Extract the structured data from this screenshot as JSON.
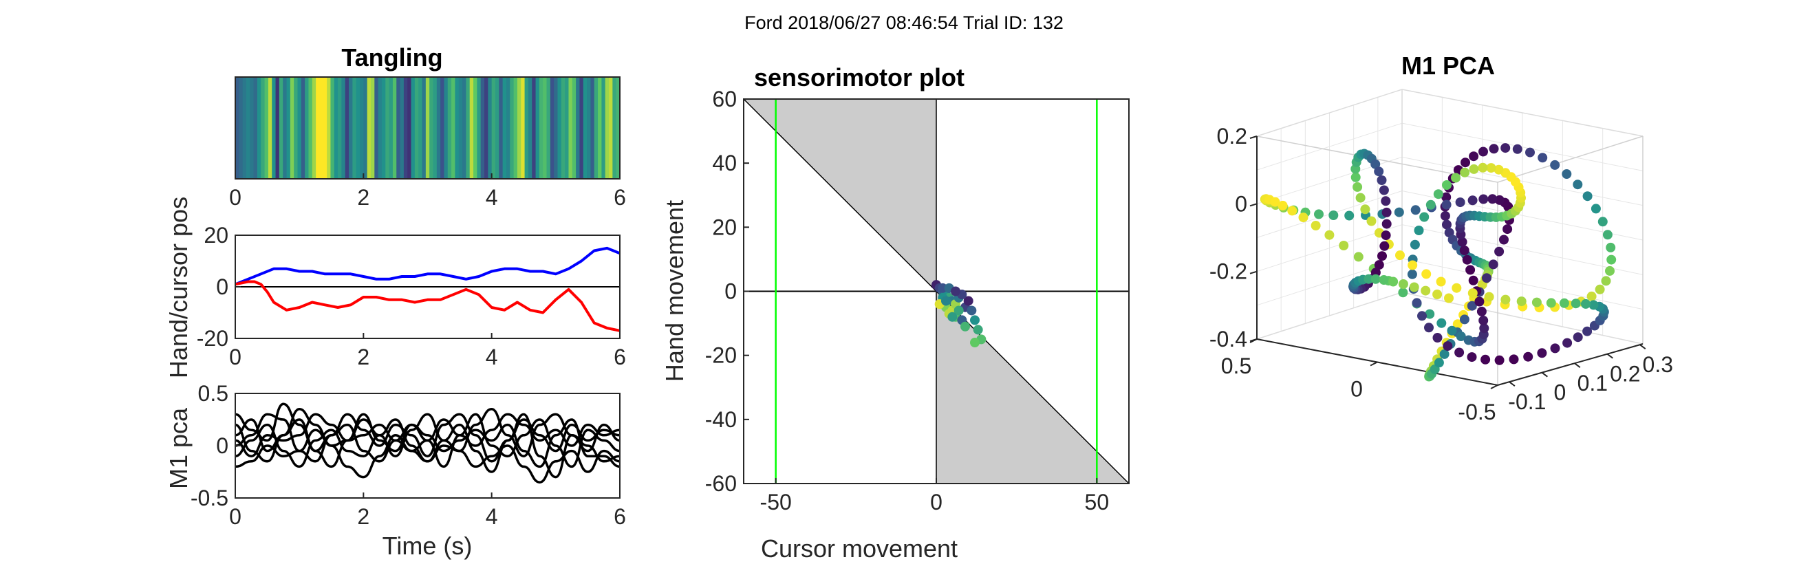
{
  "figure": {
    "suptitle": "Ford 2018/06/27 08:46:54 Trial ID: 132"
  },
  "colors": {
    "hand": "#0000ff",
    "cursor": "#ff0000",
    "pca": "#000000",
    "bound": "#00ff00",
    "shade": "#cccccc",
    "viridis": [
      "#440154",
      "#3b528b",
      "#21918c",
      "#5ec962",
      "#fde725"
    ]
  },
  "chart_data": [
    {
      "type": "heatmap",
      "title": "Tangling",
      "x_ticks": [
        "0",
        "2",
        "4",
        "6"
      ],
      "xlim": [
        0,
        6
      ],
      "values": [
        0.3,
        0.35,
        0.4,
        0.45,
        0.4,
        0.35,
        0.5,
        0.6,
        0.7,
        0.9,
        0.5,
        0.15,
        0.6,
        0.4,
        0.5,
        0.8,
        0.6,
        0.5,
        0.3,
        0.55,
        0.7,
        0.85,
        1,
        1,
        1,
        0.9,
        0.65,
        0.5,
        0.55,
        0.45,
        0.2,
        0.4,
        0.55,
        0.5,
        0.45,
        0.4,
        0.9,
        0.85,
        0.3,
        0.45,
        0.5,
        0.6,
        0.55,
        0.7,
        0.3,
        0.4,
        0.2,
        0.15,
        0.5,
        0.6,
        0.55,
        0.4,
        0.85,
        0.6,
        0.55,
        0.4,
        0.25,
        0.45,
        0.6,
        0.7,
        0.5,
        0.45,
        0.4,
        0.6,
        0.9,
        0.75,
        0.55,
        0.3,
        0.2,
        0.45,
        0.6,
        0.55,
        0.3,
        0.5,
        0.45,
        0.6,
        0.7,
        0.85,
        0.95,
        0.55,
        0.45,
        0.2,
        0.5,
        0.65,
        0.7,
        0.6,
        0.25,
        0.35,
        0.5,
        0.6,
        0.55,
        0.8,
        0.7,
        0.4,
        0.2,
        0.5,
        0.45,
        0.3,
        0.6,
        0.75,
        0.55,
        0.85,
        0.9,
        0.6,
        0.65
      ]
    },
    {
      "type": "line",
      "ylabel": "Hand/cursor pos",
      "x_ticks": [
        "0",
        "2",
        "4",
        "6"
      ],
      "y_ticks": [
        "20",
        "0",
        "-20"
      ],
      "xlim": [
        0,
        6
      ],
      "ylim": [
        -20,
        20
      ],
      "series": [
        {
          "color": "hand",
          "x": [
            0,
            0.2,
            0.4,
            0.6,
            0.8,
            1.0,
            1.2,
            1.4,
            1.6,
            1.8,
            2.0,
            2.2,
            2.4,
            2.6,
            2.8,
            3.0,
            3.2,
            3.4,
            3.6,
            3.8,
            4.0,
            4.2,
            4.4,
            4.6,
            4.8,
            5.0,
            5.2,
            5.4,
            5.6,
            5.8,
            6.0
          ],
          "y": [
            1,
            3,
            5,
            7,
            7,
            6,
            6,
            5,
            5,
            5,
            4,
            3,
            3,
            4,
            4,
            5,
            5,
            4,
            3,
            4,
            6,
            7,
            7,
            6,
            6,
            5,
            7,
            10,
            14,
            15,
            13
          ]
        },
        {
          "color": "cursor",
          "x": [
            0,
            0.2,
            0.3,
            0.4,
            0.5,
            0.6,
            0.8,
            1.0,
            1.2,
            1.4,
            1.6,
            1.8,
            2.0,
            2.2,
            2.4,
            2.6,
            2.8,
            3.0,
            3.2,
            3.4,
            3.6,
            3.8,
            4.0,
            4.2,
            4.4,
            4.6,
            4.8,
            5.0,
            5.2,
            5.4,
            5.6,
            5.8,
            6.0
          ],
          "y": [
            1,
            2,
            2,
            1,
            -2,
            -6,
            -9,
            -8,
            -6,
            -7,
            -8,
            -7,
            -4,
            -4,
            -5,
            -5,
            -6,
            -5,
            -5,
            -3,
            -1,
            -3,
            -8,
            -9,
            -6,
            -9,
            -10,
            -5,
            -1,
            -6,
            -14,
            -16,
            -17
          ]
        }
      ],
      "hline": 0
    },
    {
      "type": "line",
      "ylabel": "M1 pca",
      "xlabel": "Time (s)",
      "x_ticks": [
        "0",
        "2",
        "4",
        "6"
      ],
      "y_ticks": [
        "0.5",
        "0",
        "-0.5"
      ],
      "xlim": [
        0,
        6
      ],
      "ylim": [
        -0.5,
        0.5
      ],
      "x": [
        0,
        0.25,
        0.5,
        0.75,
        1.0,
        1.25,
        1.5,
        1.75,
        2.0,
        2.25,
        2.5,
        2.75,
        3.0,
        3.25,
        3.5,
        3.75,
        4.0,
        4.25,
        4.5,
        4.75,
        5.0,
        5.25,
        5.5,
        5.75,
        6.0
      ],
      "series": [
        {
          "values": [
            0.3,
            0.15,
            0.05,
            0.4,
            0.2,
            -0.05,
            0.1,
            0.3,
            0.15,
            0,
            0.2,
            0.1,
            -0.1,
            0.2,
            0.3,
            0.1,
            -0.15,
            0.05,
            0.25,
            0.1,
            -0.05,
            0.2,
            0.05,
            0.15,
            0.1
          ]
        },
        {
          "values": [
            0.1,
            0.25,
            -0.05,
            0.1,
            0.35,
            0.2,
            0,
            0.05,
            0.25,
            0.1,
            -0.1,
            0.15,
            0.3,
            0.05,
            -0.05,
            0.2,
            0.35,
            0.1,
            -0.1,
            0.2,
            0.3,
            0.1,
            -0.05,
            0.2,
            0.05
          ]
        },
        {
          "values": [
            -0.1,
            0.05,
            0.2,
            -0.05,
            -0.2,
            0.05,
            0.15,
            -0.05,
            -0.1,
            0.1,
            0.25,
            0,
            -0.15,
            0.05,
            0.2,
            -0.05,
            -0.25,
            0.05,
            0.3,
            -0.1,
            -0.3,
            0.1,
            0,
            -0.15,
            -0.1
          ]
        },
        {
          "values": [
            0.2,
            -0.05,
            -0.15,
            0.1,
            0.25,
            -0.05,
            -0.2,
            0.05,
            0.3,
            0.05,
            -0.05,
            0.2,
            0.05,
            -0.2,
            0.1,
            0.3,
            0,
            -0.1,
            0.1,
            0.25,
            0,
            -0.2,
            0.15,
            0.05,
            -0.05
          ]
        },
        {
          "values": [
            0,
            0.1,
            0.3,
            0.25,
            -0.05,
            -0.15,
            0.1,
            0.2,
            -0.05,
            -0.15,
            0.05,
            0.2,
            0.1,
            -0.05,
            0.05,
            0.15,
            0.05,
            0.2,
            -0.05,
            -0.2,
            0.1,
            0.25,
            -0.1,
            -0.1,
            -0.2
          ]
        },
        {
          "values": [
            -0.2,
            -0.15,
            0,
            -0.1,
            -0.05,
            0.15,
            0,
            -0.2,
            -0.3,
            -0.1,
            0.1,
            -0.05,
            -0.15,
            0,
            -0.05,
            -0.2,
            -0.1,
            0,
            -0.2,
            -0.35,
            -0.15,
            -0.05,
            -0.25,
            -0.05,
            -0.15
          ]
        },
        {
          "values": [
            0.05,
            -0.1,
            0.1,
            0.05,
            0.1,
            0.3,
            0.2,
            0.05,
            0.1,
            0.2,
            0.05,
            -0.05,
            0.05,
            0.25,
            0.1,
            0,
            0.15,
            0.3,
            0.2,
            0.05,
            0.15,
            0,
            0.2,
            0.1,
            0.15
          ]
        }
      ]
    },
    {
      "type": "scatter",
      "title": "sensorimotor plot",
      "xlabel": "Cursor movement",
      "ylabel": "Hand movement",
      "x_ticks": [
        "-50",
        "0",
        "50"
      ],
      "y_ticks": [
        "60",
        "40",
        "20",
        "0",
        "-20",
        "-40",
        "-60"
      ],
      "xlim": [
        -60,
        60
      ],
      "ylim": [
        -60,
        60
      ],
      "bounds_x": [
        -50,
        50
      ],
      "points": [
        [
          0,
          2,
          0.1
        ],
        [
          1,
          1,
          0.2
        ],
        [
          2,
          0,
          0.3
        ],
        [
          3,
          -1,
          0.5
        ],
        [
          4,
          -2,
          0.6
        ],
        [
          5,
          -3,
          0.4
        ],
        [
          3,
          -5,
          0.8
        ],
        [
          4,
          -7,
          0.9
        ],
        [
          6,
          -8,
          0.7
        ],
        [
          8,
          -9,
          0.3
        ],
        [
          9,
          -5,
          0.2
        ],
        [
          10,
          -3,
          0.1
        ],
        [
          11,
          -6,
          0.3
        ],
        [
          12,
          -9,
          0.5
        ],
        [
          13,
          -12,
          0.6
        ],
        [
          14,
          -15,
          0.7
        ],
        [
          12,
          -16,
          0.75
        ],
        [
          2,
          -2,
          0.5
        ],
        [
          1,
          -4,
          0.95
        ],
        [
          5,
          -6,
          0.9
        ],
        [
          6,
          -4,
          0.85
        ],
        [
          7,
          -2,
          0.4
        ],
        [
          8,
          -1,
          0.2
        ],
        [
          2,
          1,
          0.25
        ],
        [
          4,
          1,
          0.35
        ],
        [
          6,
          0,
          0.15
        ],
        [
          7,
          -6,
          0.6
        ],
        [
          5,
          -8,
          0.55
        ],
        [
          3,
          -3,
          0.45
        ],
        [
          9,
          -11,
          0.65
        ]
      ]
    },
    {
      "type": "scatter",
      "title": "M1 PCA",
      "z_ticks": [
        "0.2",
        "0",
        "-0.2",
        "-0.4"
      ],
      "y_ticks": [
        "0.5",
        "0",
        "-0.5"
      ],
      "x_ticks": [
        "-0.1",
        "0",
        "0.1",
        "0.2",
        "0.3"
      ],
      "xlim": [
        -0.1,
        0.3
      ],
      "ylim": [
        -0.5,
        0.5
      ],
      "zlim": [
        -0.4,
        0.2
      ],
      "trajectory_points": 260
    }
  ]
}
